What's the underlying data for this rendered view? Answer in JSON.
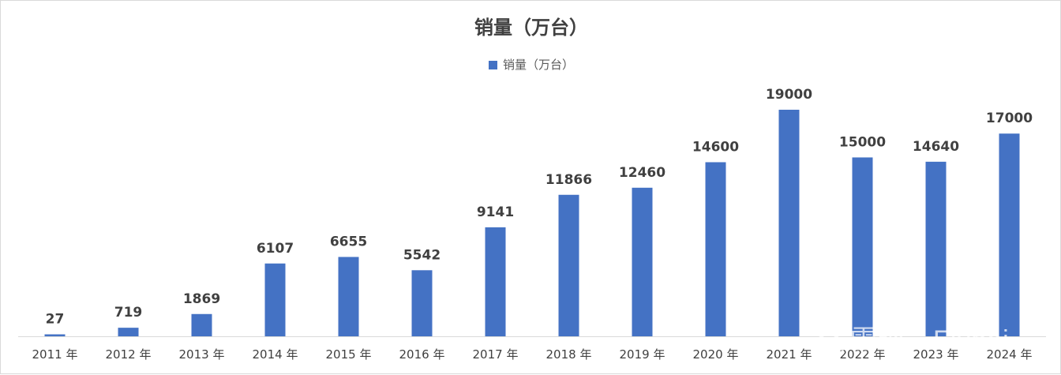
{
  "chart_data": {
    "type": "bar",
    "title": "销量（万台）",
    "categories": [
      "2011 年",
      "2012 年",
      "2013 年",
      "2014 年",
      "2015 年",
      "2016 年",
      "2017 年",
      "2018 年",
      "2019 年",
      "2020 年",
      "2021 年",
      "2022 年",
      "2023 年",
      "2024 年"
    ],
    "series": [
      {
        "name": "销量（万台）",
        "values": [
          27,
          719,
          1869,
          6107,
          6655,
          5542,
          9141,
          11866,
          12460,
          14600,
          19000,
          15000,
          14640,
          17000
        ]
      }
    ],
    "ylim": [
      0,
      19000
    ],
    "grid": false,
    "legend_position": "top",
    "data_labels": true,
    "bar_color": "#4472c4"
  },
  "watermark": {
    "text": "雪球：Flypai",
    "icon": "snowball-logo-icon"
  }
}
